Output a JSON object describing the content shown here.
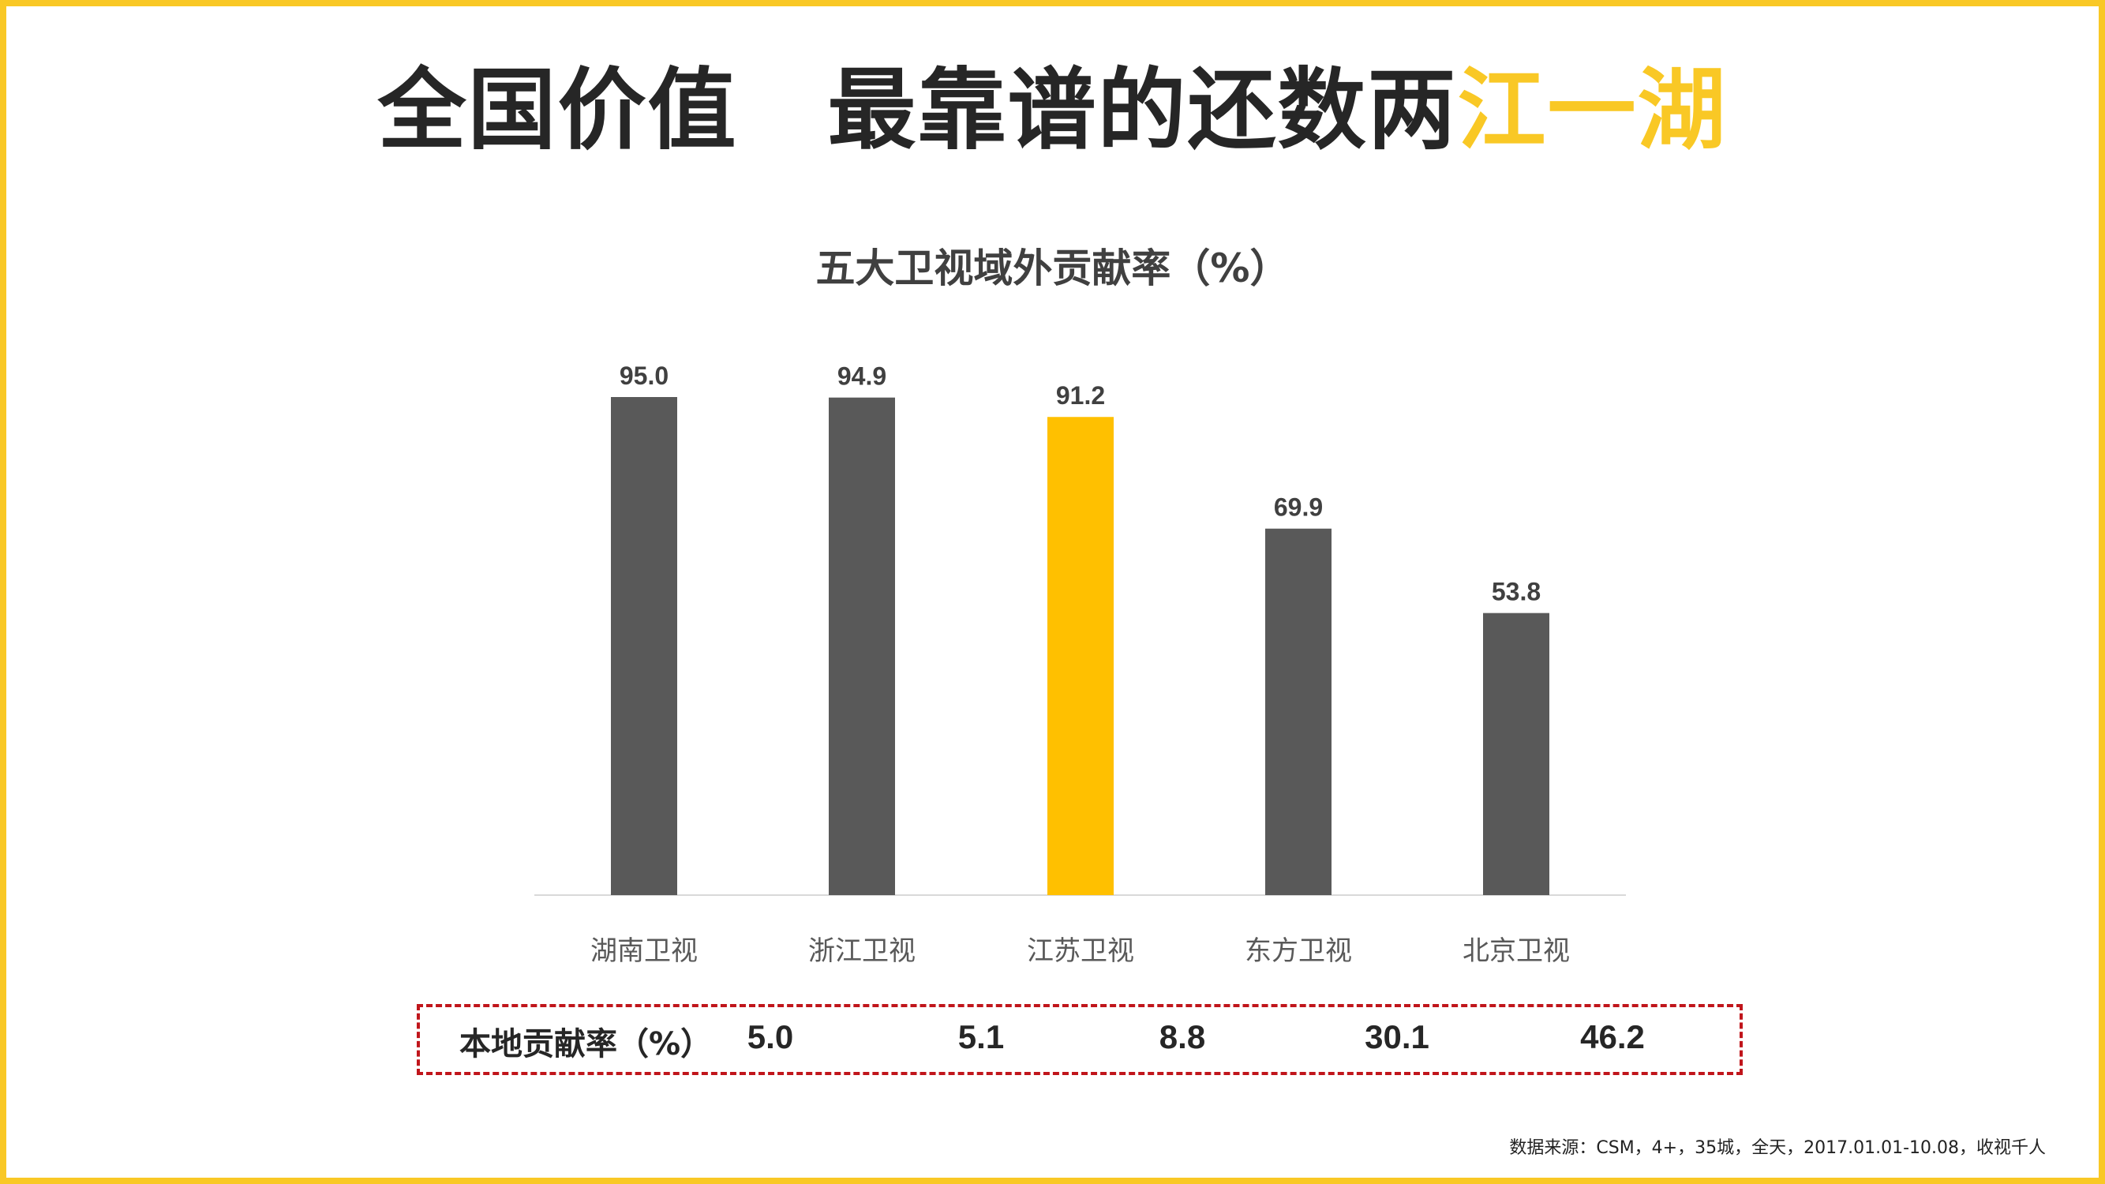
{
  "title": {
    "main": "全国价值　最靠谱的还数两",
    "accent": "江一湖"
  },
  "chart_data": {
    "type": "bar",
    "title": "五大卫视域外贡献率（%）",
    "categories": [
      "湖南卫视",
      "浙江卫视",
      "江苏卫视",
      "东方卫视",
      "北京卫视"
    ],
    "values": [
      95.0,
      94.9,
      91.2,
      69.9,
      53.8
    ],
    "value_labels": [
      "95.0",
      "94.9",
      "91.2",
      "69.9",
      "53.8"
    ],
    "highlight_index": 2,
    "ylim": [
      0,
      100
    ],
    "grid": false,
    "colors": {
      "default": "#595959",
      "highlight": "#FFC000",
      "axis": "#D9D9D9",
      "label": "#404040"
    }
  },
  "local_rate": {
    "label": "本地贡献率（%）",
    "values": [
      "5.0",
      "5.1",
      "8.8",
      "30.1",
      "46.2"
    ]
  },
  "source_note": "数据来源：CSM，4+，35城，全天，2017.01.01-10.08，收视千人",
  "colors": {
    "frame": "#F9C825",
    "accent": "#F9C825",
    "dashed_box": "#C0151B"
  }
}
